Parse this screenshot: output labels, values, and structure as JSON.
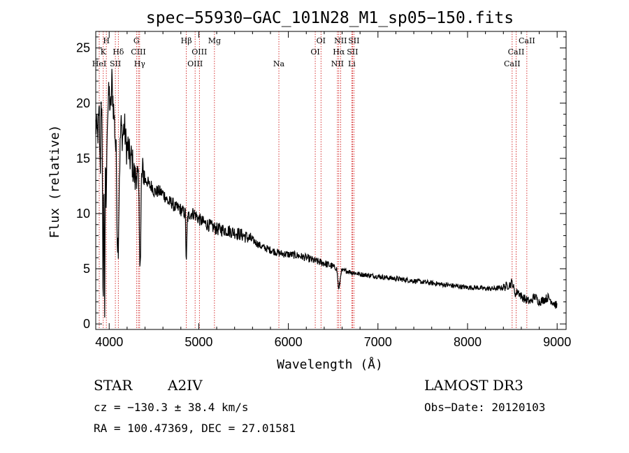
{
  "chart_data": {
    "type": "line",
    "title": "spec−55930−GAC_101N28_M1_sp05−150.fits",
    "xlabel": "Wavelength (Å)",
    "ylabel": "Flux (relative)",
    "xlim": [
      3850,
      9100
    ],
    "ylim": [
      -0.5,
      26.5
    ],
    "xticks": [
      4000,
      5000,
      6000,
      7000,
      8000,
      9000
    ],
    "yticks": [
      0,
      5,
      10,
      15,
      20,
      25
    ],
    "series": [
      {
        "name": "spectrum",
        "x": [
          3850,
          3870,
          3890,
          3900,
          3910,
          3920,
          3933,
          3940,
          3950,
          3960,
          3968,
          3975,
          3990,
          4000,
          4015,
          4030,
          4045,
          4060,
          4080,
          4090,
          4101,
          4115,
          4130,
          4150,
          4170,
          4190,
          4210,
          4230,
          4250,
          4270,
          4290,
          4310,
          4330,
          4340,
          4350,
          4360,
          4380,
          4400,
          4420,
          4450,
          4480,
          4500,
          4530,
          4560,
          4600,
          4630,
          4660,
          4700,
          4740,
          4780,
          4820,
          4850,
          4861,
          4872,
          4900,
          4950,
          5000,
          5050,
          5100,
          5150,
          5200,
          5300,
          5400,
          5500,
          5600,
          5700,
          5800,
          5900,
          6000,
          6100,
          6200,
          6300,
          6400,
          6500,
          6540,
          6563,
          6590,
          6650,
          6700,
          6800,
          6900,
          7000,
          7100,
          7200,
          7300,
          7400,
          7500,
          7600,
          7700,
          7800,
          7900,
          8000,
          8100,
          8200,
          8300,
          8400,
          8480,
          8500,
          8520,
          8540,
          8560,
          8600,
          8650,
          8700,
          8750,
          8800,
          8850,
          8900,
          8950,
          9000
        ],
        "y": [
          18,
          17,
          19,
          13,
          21,
          18,
          0.5,
          15,
          1,
          16,
          9,
          18,
          20,
          21,
          19,
          22,
          20,
          18,
          15,
          8,
          7,
          14,
          18,
          17,
          18,
          16,
          16,
          15,
          15,
          14,
          13,
          14,
          12,
          7,
          6,
          13,
          14,
          13,
          13,
          12.5,
          12.5,
          12,
          12,
          12,
          11.8,
          11.5,
          11,
          11,
          10.5,
          10.5,
          10.2,
          10,
          5,
          9.5,
          10,
          10,
          9.5,
          9.2,
          9,
          8.8,
          8.6,
          8.5,
          8.3,
          8,
          7.6,
          7,
          6.7,
          6.4,
          6.3,
          6.2,
          6,
          5.7,
          5.5,
          5.2,
          5,
          3,
          4.8,
          4.8,
          4.7,
          4.5,
          4.4,
          4.3,
          4.2,
          4.1,
          4,
          3.9,
          3.8,
          3.7,
          3.6,
          3.5,
          3.4,
          3.3,
          3.3,
          3.2,
          3.2,
          3.3,
          3.6,
          3.8,
          3,
          2.7,
          3,
          2.5,
          2.2,
          2,
          2.5,
          2,
          2.2,
          2.4,
          2,
          1.6
        ]
      }
    ],
    "lines": [
      {
        "label": "HeI",
        "wl": 3889,
        "row": 3
      },
      {
        "label": "K",
        "wl": 3934,
        "row": 2
      },
      {
        "label": "H",
        "wl": 3968,
        "row": 1
      },
      {
        "label": "SII",
        "wl": 4069,
        "row": 3
      },
      {
        "label": "Hδ",
        "wl": 4102,
        "row": 2
      },
      {
        "label": "G",
        "wl": 4305,
        "row": 1
      },
      {
        "label": "CIII",
        "wl": 4326,
        "row": 2
      },
      {
        "label": "Hγ",
        "wl": 4340,
        "row": 3
      },
      {
        "label": "Hβ",
        "wl": 4861,
        "row": 1
      },
      {
        "label": "OIII",
        "wl": 4959,
        "row": 3
      },
      {
        "label": "OIII",
        "wl": 5007,
        "row": 2
      },
      {
        "label": "Mg",
        "wl": 5175,
        "row": 1
      },
      {
        "label": "Na",
        "wl": 5894,
        "row": 3
      },
      {
        "label": "OI",
        "wl": 6300,
        "row": 2
      },
      {
        "label": "OI",
        "wl": 6364,
        "row": 1
      },
      {
        "label": "NII",
        "wl": 6548,
        "row": 3
      },
      {
        "label": "NII",
        "wl": 6583,
        "row": 1
      },
      {
        "label": "Hα",
        "wl": 6563,
        "row": 2
      },
      {
        "label": "SII",
        "wl": 6716,
        "row": 2
      },
      {
        "label": "SII",
        "wl": 6731,
        "row": 1
      },
      {
        "label": "Li",
        "wl": 6708,
        "row": 3
      },
      {
        "label": "CaII",
        "wl": 8498,
        "row": 3
      },
      {
        "label": "CaII",
        "wl": 8542,
        "row": 2
      },
      {
        "label": "CaII",
        "wl": 8662,
        "row": 1
      }
    ]
  },
  "info": {
    "class": "STAR",
    "subclass": "A2IV",
    "survey": "LAMOST DR3",
    "cz": "cz = −130.3 ± 38.4 km/s",
    "obs_date": "Obs−Date: 20120103",
    "radec": "RA = 100.47369, DEC =  27.01581"
  },
  "colors": {
    "spectrum": "#000000",
    "line_marker": "#cc0000",
    "axis": "#000000"
  }
}
